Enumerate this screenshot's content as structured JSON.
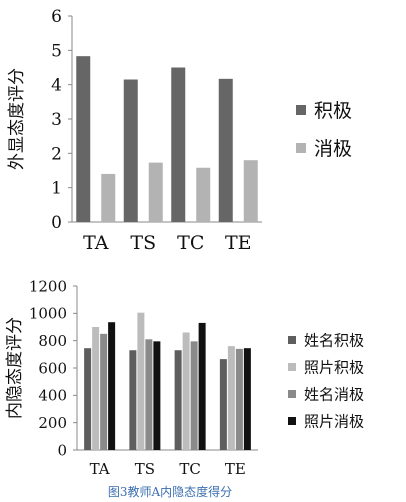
{
  "chart_data": [
    {
      "type": "bar",
      "ylabel": "外显态度评分",
      "ylim": [
        0,
        6
      ],
      "yticks": [
        0,
        1,
        2,
        3,
        4,
        5,
        6
      ],
      "categories": [
        "TA",
        "TS",
        "TC",
        "TE"
      ],
      "series": [
        {
          "name": "积极",
          "color": "#666666",
          "values": [
            4.83,
            4.15,
            4.5,
            4.17
          ]
        },
        {
          "name": "消极",
          "color": "#b3b3b3",
          "values": [
            1.4,
            1.73,
            1.58,
            1.8
          ]
        }
      ],
      "legend_position": "right",
      "grid": false
    },
    {
      "type": "bar",
      "ylabel": "内隐态度评分",
      "ylim": [
        0,
        1200
      ],
      "yticks": [
        0,
        200,
        400,
        600,
        800,
        1000,
        1200
      ],
      "categories": [
        "TA",
        "TS",
        "TC",
        "TE"
      ],
      "series": [
        {
          "name": "姓名积极",
          "color": "#5e5e5e",
          "values": [
            745,
            730,
            730,
            665
          ]
        },
        {
          "name": "照片积极",
          "color": "#bcbcbc",
          "values": [
            900,
            1005,
            860,
            760
          ]
        },
        {
          "name": "姓名消极",
          "color": "#8a8a8a",
          "values": [
            850,
            810,
            795,
            740
          ]
        },
        {
          "name": "照片消极",
          "color": "#111111",
          "values": [
            935,
            795,
            930,
            745
          ]
        }
      ],
      "legend_position": "right",
      "grid": false
    }
  ],
  "caption": "图3教师A内隐态度得分",
  "caption_color": "#3a6fb0"
}
